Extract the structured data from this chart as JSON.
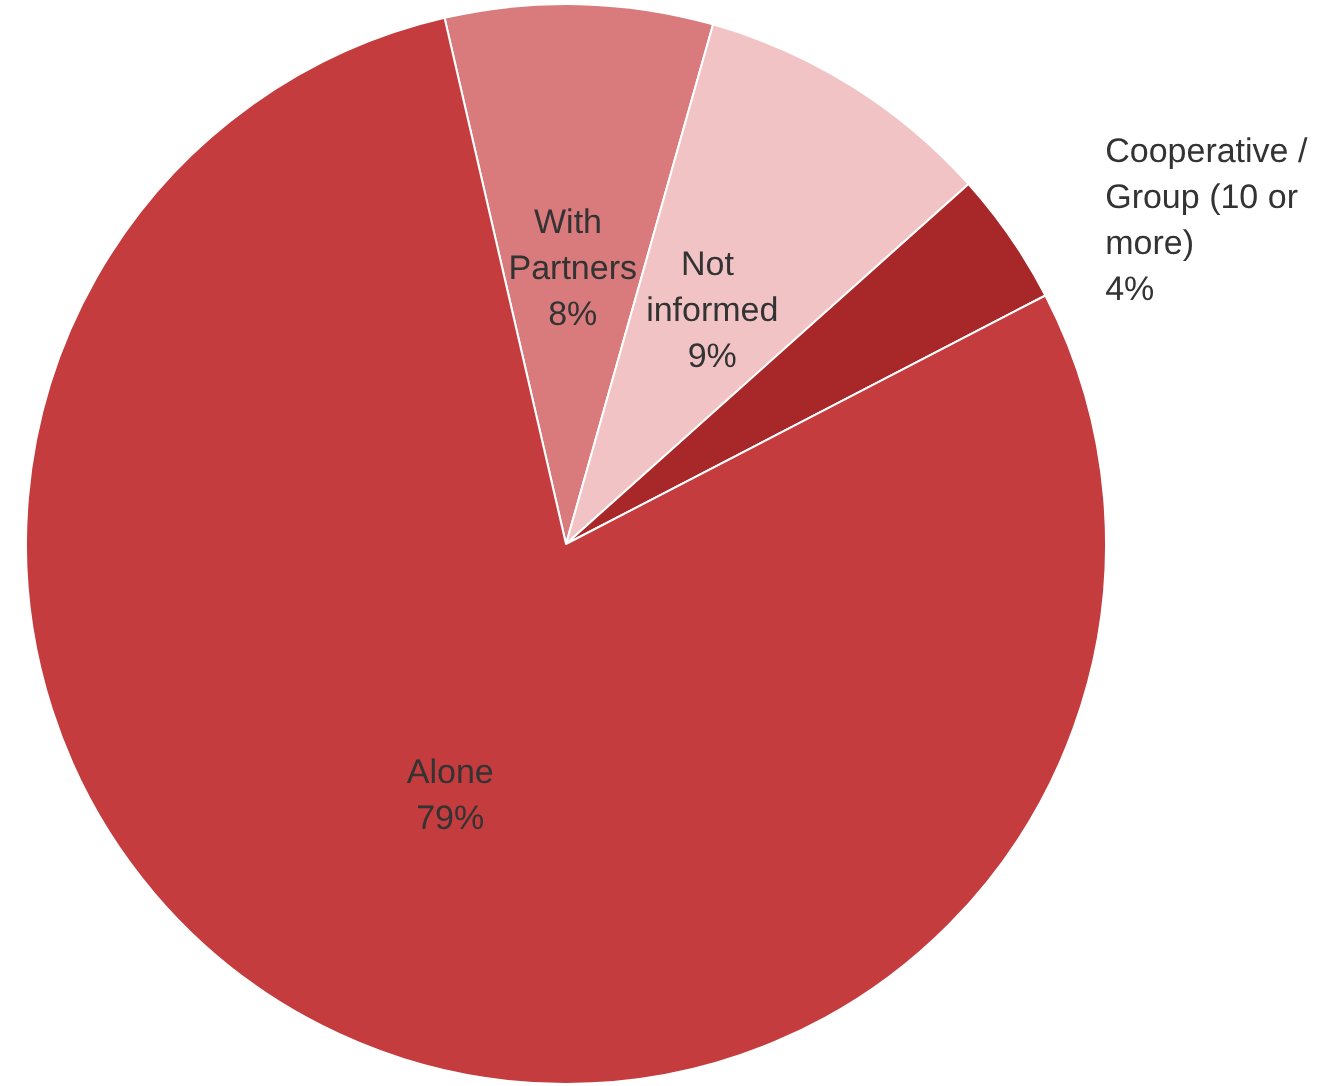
{
  "chart_data": {
    "type": "pie",
    "categories": [
      "With Partners",
      "Not informed",
      "Cooperative / Group (10 or more)",
      "Alone"
    ],
    "values": [
      8,
      9,
      4,
      79
    ],
    "value_labels": [
      "8%",
      "9%",
      "4%",
      "79%"
    ],
    "colors": [
      "#d97a7c",
      "#f2c3c5",
      "#a82729",
      "#c43c3e"
    ],
    "legend": false
  }
}
